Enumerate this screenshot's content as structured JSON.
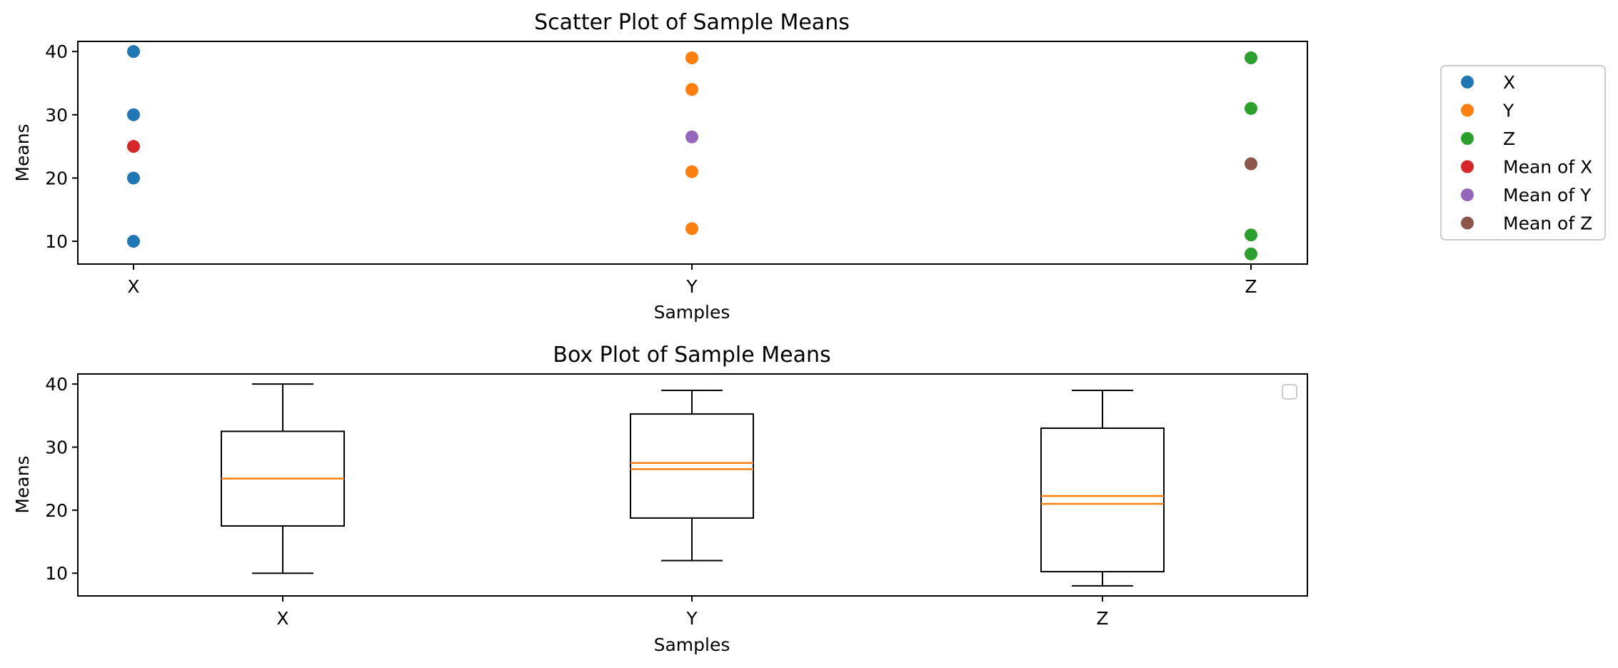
{
  "chart_data": [
    {
      "type": "scatter",
      "title": "Scatter Plot of Sample Means",
      "xlabel": "Samples",
      "ylabel": "Means",
      "categories": [
        "X",
        "Y",
        "Z"
      ],
      "yticks": [
        10,
        20,
        30,
        40
      ],
      "ylim": [
        6.4,
        41.6
      ],
      "grid": false,
      "legend_placement": "outside right",
      "series": [
        {
          "name": "X",
          "color": "#1f77b4",
          "x": [
            "X",
            "X",
            "X",
            "X"
          ],
          "values": [
            10,
            20,
            30,
            40
          ]
        },
        {
          "name": "Y",
          "color": "#ff7f0e",
          "x": [
            "Y",
            "Y",
            "Y",
            "Y"
          ],
          "values": [
            12,
            21,
            34,
            39
          ]
        },
        {
          "name": "Z",
          "color": "#2ca02c",
          "x": [
            "Z",
            "Z",
            "Z",
            "Z"
          ],
          "values": [
            8,
            11,
            31,
            39
          ]
        },
        {
          "name": "Mean of X",
          "color": "#d62728",
          "x": [
            "X"
          ],
          "values": [
            25
          ]
        },
        {
          "name": "Mean of Y",
          "color": "#9467bd",
          "x": [
            "Y"
          ],
          "values": [
            26.5
          ]
        },
        {
          "name": "Mean of Z",
          "color": "#8c564b",
          "x": [
            "Z"
          ],
          "values": [
            22.25
          ]
        }
      ]
    },
    {
      "type": "box",
      "title": "Box Plot of Sample Means",
      "xlabel": "Samples",
      "ylabel": "Means",
      "categories": [
        "X",
        "Y",
        "Z"
      ],
      "yticks": [
        10,
        20,
        30,
        40
      ],
      "ylim": [
        6.4,
        41.6
      ],
      "grid": false,
      "legend_placement": "upper right (empty)",
      "boxes": [
        {
          "name": "X",
          "min": 10,
          "q1": 17.5,
          "median": 25,
          "mean_line": 25,
          "q3": 32.5,
          "max": 40
        },
        {
          "name": "Y",
          "min": 12,
          "q1": 18.75,
          "median": 27.5,
          "mean_line": 26.5,
          "q3": 35.25,
          "max": 39
        },
        {
          "name": "Z",
          "min": 8,
          "q1": 10.25,
          "median": 21,
          "mean_line": 22.25,
          "q3": 33,
          "max": 39
        }
      ],
      "median_color": "#ff7f0e"
    }
  ]
}
